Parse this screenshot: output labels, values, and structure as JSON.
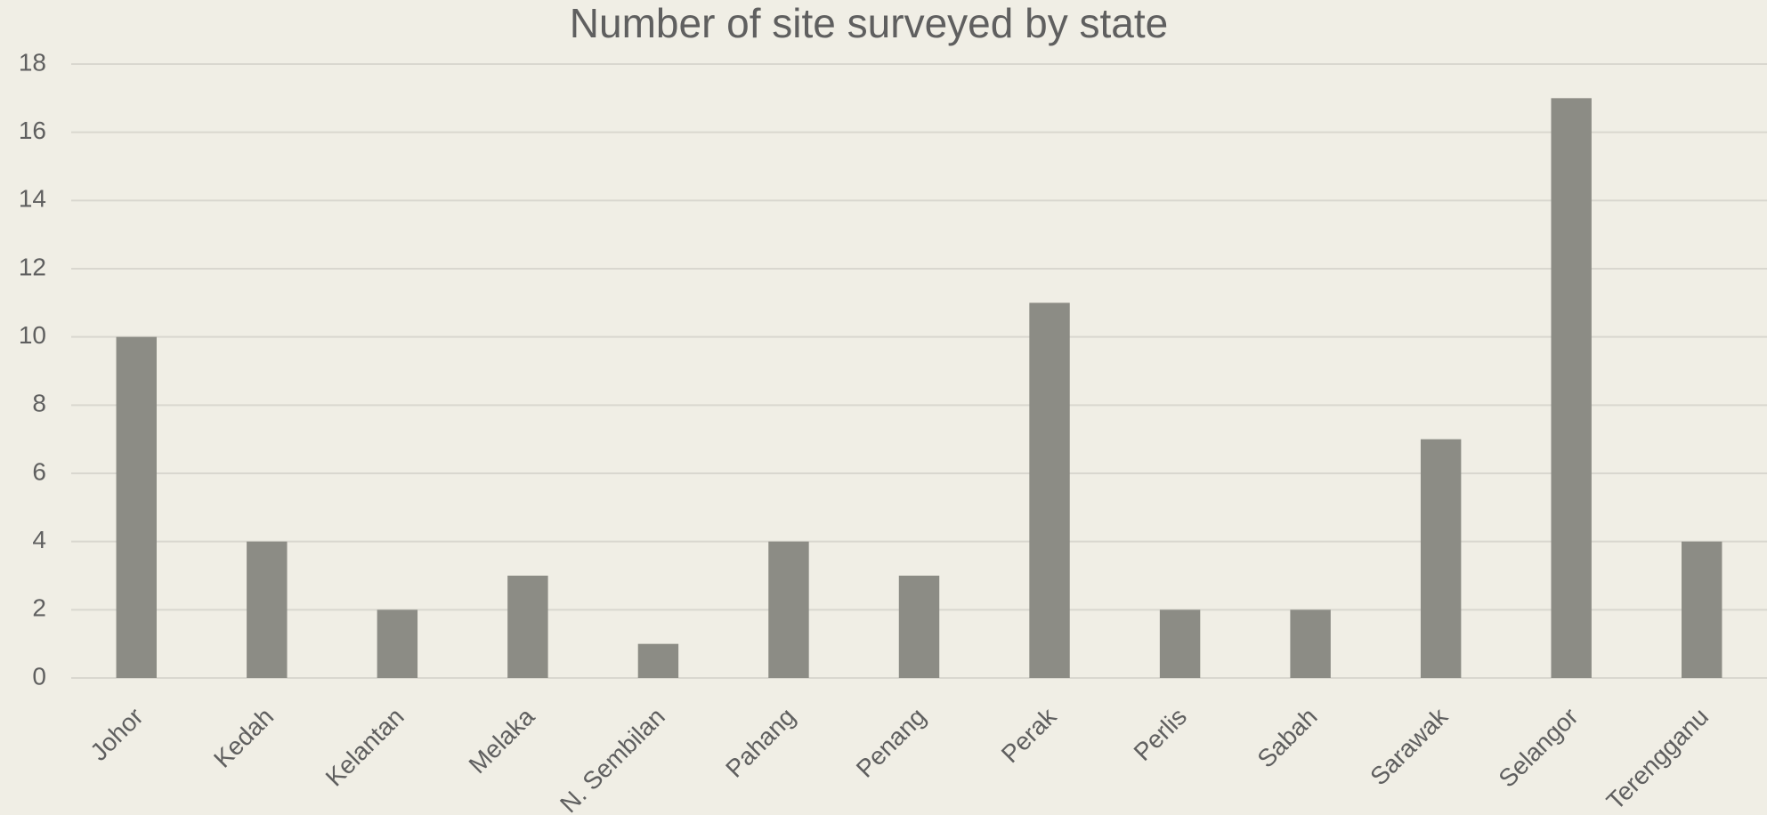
{
  "chart_data": {
    "type": "bar",
    "title": "Number of site surveyed by state",
    "categories": [
      "Johor",
      "Kedah",
      "Kelantan",
      "Melaka",
      "N. Sembilan",
      "Pahang",
      "Penang",
      "Perak",
      "Perlis",
      "Sabah",
      "Sarawak",
      "Selangor",
      "Terengganu"
    ],
    "values": [
      10,
      4,
      2,
      3,
      1,
      4,
      3,
      11,
      2,
      2,
      7,
      17,
      4
    ],
    "color": "#8c8c85",
    "ylim": [
      0,
      18
    ],
    "yticks": [
      0,
      2,
      4,
      6,
      8,
      10,
      12,
      14,
      16,
      18
    ],
    "grid": true
  }
}
